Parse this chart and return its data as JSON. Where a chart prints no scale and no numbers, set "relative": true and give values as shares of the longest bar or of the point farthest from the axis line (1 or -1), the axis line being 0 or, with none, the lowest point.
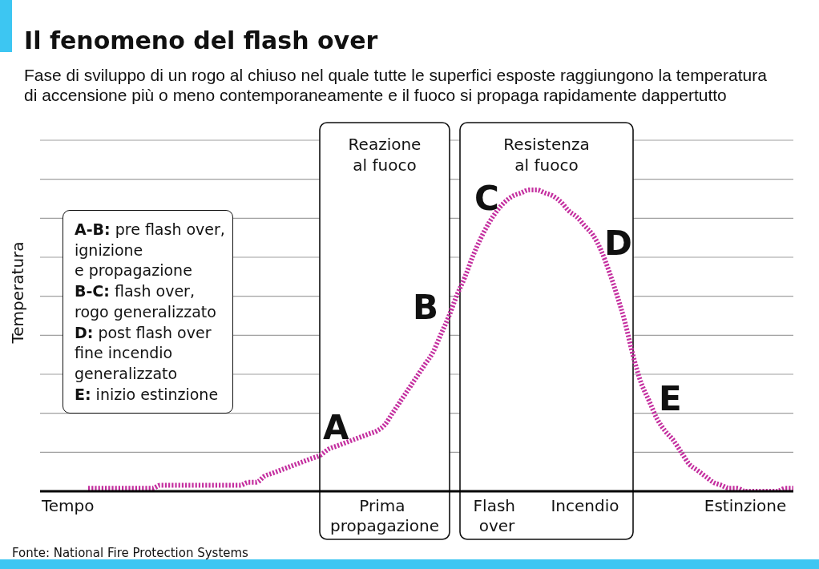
{
  "chart_data": {
    "type": "line",
    "title": "Il fenomeno del flash over",
    "subtitle": "Fase di sviluppo di un rogo al chiuso nel quale tutte le superfici esposte raggiungono la temperatura\ndi accensione più o meno contemporaneamente e il fuoco si propaga rapidamente dappertutto",
    "xlabel": "Tempo",
    "ylabel": "Temperatura",
    "categories": [
      null,
      null,
      null,
      null,
      null,
      null,
      null,
      null,
      null,
      null,
      null,
      null,
      null,
      null,
      null,
      null,
      null,
      null,
      null,
      null,
      null,
      null,
      null,
      null,
      null,
      null,
      null,
      null,
      null,
      null,
      null,
      null,
      null,
      null,
      null,
      null,
      null,
      null,
      null,
      null,
      null,
      null,
      null,
      "Prima propagazione",
      null,
      null,
      null,
      null,
      null,
      null,
      null,
      null,
      null,
      null,
      null,
      null,
      null,
      "Flash over",
      null,
      null,
      null,
      null,
      null,
      null,
      null,
      null,
      null,
      null,
      "Incendio",
      null,
      null,
      null,
      null,
      null,
      null,
      null,
      null,
      null,
      null,
      null,
      null,
      null,
      null,
      null,
      null,
      null,
      null,
      null,
      "Estinzione",
      null,
      null,
      null,
      null,
      null,
      null
    ],
    "values": [
      null,
      null,
      null,
      null,
      null,
      null,
      0.01,
      0.01,
      0.01,
      0.01,
      0.01,
      0.01,
      0.01,
      0.01,
      0.01,
      0.02,
      0.02,
      0.02,
      0.02,
      0.02,
      0.02,
      0.02,
      0.02,
      0.02,
      0.02,
      0.02,
      0.03,
      0.03,
      0.05,
      0.06,
      0.07,
      0.08,
      0.09,
      0.1,
      0.11,
      0.12,
      0.14,
      0.15,
      0.16,
      0.17,
      0.18,
      0.19,
      0.2,
      0.22,
      0.26,
      0.3,
      0.34,
      0.38,
      0.42,
      0.46,
      0.52,
      0.58,
      0.65,
      0.71,
      0.78,
      0.84,
      0.89,
      0.93,
      0.96,
      0.98,
      0.99,
      1,
      1,
      0.99,
      0.98,
      0.96,
      0.93,
      0.91,
      0.88,
      0.85,
      0.8,
      0.73,
      0.65,
      0.56,
      0.45,
      0.36,
      0.3,
      0.24,
      0.2,
      0.17,
      0.13,
      0.09,
      0.07,
      0.05,
      0.03,
      0.02,
      0.01,
      0.01,
      0,
      0,
      0,
      0,
      0,
      0.01,
      0.01
    ],
    "color": "#c42f9f",
    "relative": true,
    "grid": "y",
    "marker": "none",
    "line_style": "dotted",
    "annotations": [
      "Reazione\nal fuoco",
      "Resistenza\nal fuoco",
      "A-B: pre flash over,\nignizione\ne propagazione",
      "B-C: flash over,\nrogo generalizzato",
      "D: post flash over\nfine incendio\ngeneralizzato",
      "E: inizio estinzione",
      "A",
      "B",
      "C",
      "D",
      "E",
      "Fonte: National Fire Protection Systems"
    ]
  }
}
